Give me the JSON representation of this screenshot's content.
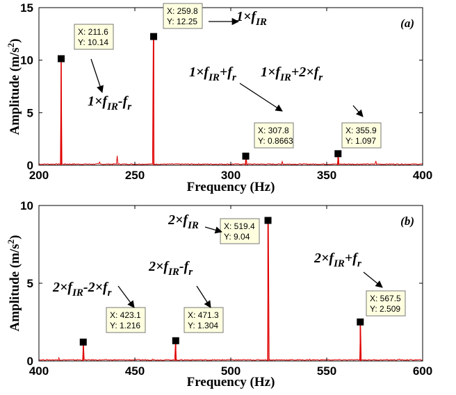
{
  "chart_data": [
    {
      "type": "line",
      "panel_label": "(a)",
      "xlabel": "Frequency (Hz)",
      "ylabel": "Amplitude (m/s2)",
      "xlim": [
        200,
        400
      ],
      "ylim": [
        0,
        15
      ],
      "x_ticks": [
        "200",
        "250",
        "300",
        "350",
        "400"
      ],
      "y_ticks": [
        "0",
        "5",
        "10",
        "15"
      ],
      "line_color": "#e00000",
      "grid": false,
      "peaks": [
        {
          "x": 211.6,
          "y": 10.14
        },
        {
          "x": 259.8,
          "y": 12.25
        },
        {
          "x": 307.8,
          "y": 0.8663
        },
        {
          "x": 355.9,
          "y": 1.097
        }
      ],
      "minor_peaks": [
        {
          "x": 240.9,
          "y": 0.9
        },
        {
          "x": 231.8,
          "y": 0.3
        },
        {
          "x": 326.7,
          "y": 0.35
        },
        {
          "x": 375.5,
          "y": 0.4
        }
      ],
      "datatips": [
        {
          "line1": "X: 211.6",
          "line2": "Y: 10.14"
        },
        {
          "line1": "X: 259.8",
          "line2": "Y: 12.25"
        },
        {
          "line1": "X: 307.8",
          "line2": "Y: 0.8663"
        },
        {
          "line1": "X: 355.9",
          "line2": "Y: 1.097"
        }
      ],
      "annotations": [
        {
          "prefix": "1×f",
          "sub1": "IR",
          "mid": "-f",
          "sub2": "r",
          "tail": ""
        },
        {
          "prefix": "1×f",
          "sub1": "IR",
          "mid": "",
          "sub2": "",
          "tail": ""
        },
        {
          "prefix": "1×f",
          "sub1": "IR",
          "mid": "+f",
          "sub2": "r",
          "tail": ""
        },
        {
          "prefix": "1×f",
          "sub1": "IR",
          "mid": "+2×f",
          "sub2": "r",
          "tail": ""
        }
      ]
    },
    {
      "type": "line",
      "panel_label": "(b)",
      "xlabel": "Frequency (Hz)",
      "ylabel": "Amplitude (m/s2)",
      "xlim": [
        400,
        600
      ],
      "ylim": [
        0,
        10
      ],
      "x_ticks": [
        "400",
        "450",
        "500",
        "550",
        "600"
      ],
      "y_ticks": [
        "0",
        "5",
        "10"
      ],
      "line_color": "#e00000",
      "grid": false,
      "peaks": [
        {
          "x": 423.1,
          "y": 1.216
        },
        {
          "x": 471.3,
          "y": 1.304
        },
        {
          "x": 519.4,
          "y": 9.04
        },
        {
          "x": 567.5,
          "y": 2.509
        }
      ],
      "minor_peaks": [
        {
          "x": 410.5,
          "y": 0.2
        },
        {
          "x": 459.0,
          "y": 0.12
        },
        {
          "x": 498.0,
          "y": 0.1
        },
        {
          "x": 541.0,
          "y": 0.12
        },
        {
          "x": 588.0,
          "y": 0.12
        }
      ],
      "datatips": [
        {
          "line1": "X: 423.1",
          "line2": "Y: 1.216"
        },
        {
          "line1": "X: 471.3",
          "line2": "Y: 1.304"
        },
        {
          "line1": "X: 519.4",
          "line2": "Y: 9.04"
        },
        {
          "line1": "X: 567.5",
          "line2": "Y: 2.509"
        }
      ],
      "annotations": [
        {
          "prefix": "2×f",
          "sub1": "IR",
          "mid": "-2×f",
          "sub2": "r",
          "tail": ""
        },
        {
          "prefix": "2×f",
          "sub1": "IR",
          "mid": "-f",
          "sub2": "r",
          "tail": ""
        },
        {
          "prefix": "2×f",
          "sub1": "IR",
          "mid": "",
          "sub2": "",
          "tail": ""
        },
        {
          "prefix": "2×f",
          "sub1": "IR",
          "mid": "+f",
          "sub2": "r",
          "tail": ""
        }
      ]
    }
  ]
}
